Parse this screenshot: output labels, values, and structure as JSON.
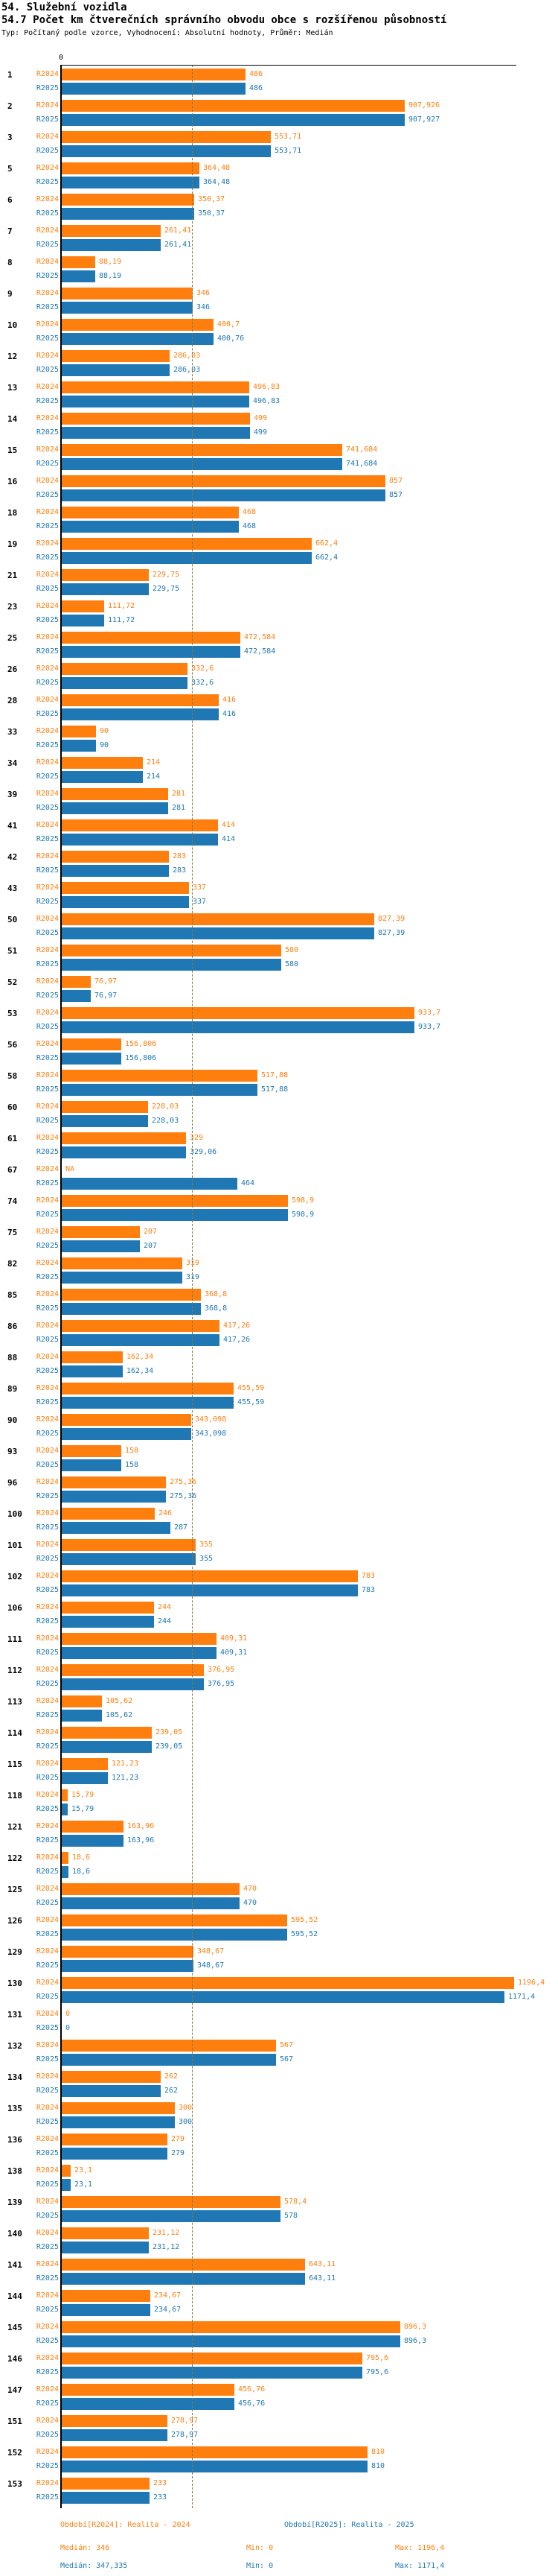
{
  "header": {
    "title": "54. Služební vozidla",
    "subtitle": "54.7 Počet km čtverečních správního obvodu obce s rozšířenou působností",
    "meta": "Typ: Počítaný podle vzorce, Vyhodnocení: Absolutní hodnoty, Průměr: Medián"
  },
  "axis": {
    "zero_label": "0"
  },
  "colors": {
    "r2024": "#FF7F0E",
    "r2025": "#1F77B4",
    "median_line": "#877940",
    "axis": "#000000"
  },
  "footer": {
    "legend_r2024": "Období[R2024]: Realita - 2024",
    "legend_r2025": "Období[R2025]: Realita - 2025",
    "stats_r2024": {
      "median": "Medián: 346",
      "min": "Min: 0",
      "max": "Max: 1196,4"
    },
    "stats_r2025": {
      "median": "Medián: 347,335",
      "min": "Min: 0",
      "max": "Max: 1171,4"
    }
  },
  "chart_data": {
    "type": "bar",
    "orientation": "horizontal",
    "title": "54.7 Počet km čtverečních správního obvodu obce s rozšířenou působností",
    "xlim": [
      0,
      1204
    ],
    "grid": false,
    "reference_line": {
      "label": "Medián",
      "value": 346,
      "style": "dashed"
    },
    "categories": [
      "1",
      "2",
      "3",
      "5",
      "6",
      "7",
      "8",
      "9",
      "10",
      "12",
      "13",
      "14",
      "15",
      "16",
      "18",
      "19",
      "21",
      "23",
      "25",
      "26",
      "28",
      "33",
      "34",
      "39",
      "41",
      "42",
      "43",
      "50",
      "51",
      "52",
      "53",
      "56",
      "58",
      "60",
      "61",
      "67",
      "74",
      "75",
      "82",
      "85",
      "86",
      "88",
      "89",
      "90",
      "93",
      "96",
      "100",
      "101",
      "102",
      "106",
      "111",
      "112",
      "113",
      "114",
      "115",
      "118",
      "121",
      "122",
      "125",
      "126",
      "129",
      "130",
      "131",
      "132",
      "134",
      "135",
      "136",
      "138",
      "139",
      "140",
      "141",
      "144",
      "145",
      "146",
      "147",
      "151",
      "152",
      "153"
    ],
    "series": [
      {
        "name": "R2024",
        "values": [
          486,
          907.926,
          553.71,
          364.48,
          350.37,
          261.41,
          88.19,
          346,
          400.7,
          286.03,
          496.83,
          499,
          741.684,
          857,
          468,
          662.4,
          229.75,
          111.72,
          472.584,
          332.6,
          416,
          90,
          214,
          281,
          414,
          283,
          337,
          827.39,
          580,
          76.97,
          933.7,
          156.806,
          517.88,
          228.03,
          329,
          null,
          598.9,
          207,
          319,
          368.8,
          417.26,
          162.34,
          455.59,
          343.098,
          158,
          275.36,
          246,
          355,
          783,
          244,
          409.31,
          376.95,
          105.62,
          239.05,
          121.23,
          15.79,
          163.96,
          18.6,
          470,
          595.52,
          348.67,
          1196.4,
          0,
          567,
          262,
          300,
          279,
          23.1,
          578.4,
          231.12,
          643.11,
          234.67,
          896.3,
          795.6,
          456.76,
          278.97,
          810,
          233
        ],
        "labels": [
          "486",
          "907,926",
          "553,71",
          "364,48",
          "350,37",
          "261,41",
          "88,19",
          "346",
          "400,7",
          "286,03",
          "496,83",
          "499",
          "741,684",
          "857",
          "468",
          "662,4",
          "229,75",
          "111,72",
          "472,584",
          "332,6",
          "416",
          "90",
          "214",
          "281",
          "414",
          "283",
          "337",
          "827,39",
          "580",
          "76,97",
          "933,7",
          "156,806",
          "517,88",
          "228,03",
          "329",
          "NA",
          "598,9",
          "207",
          "319",
          "368,8",
          "417,26",
          "162,34",
          "455,59",
          "343,098",
          "158",
          "275,36",
          "246",
          "355",
          "783",
          "244",
          "409,31",
          "376,95",
          "105,62",
          "239,05",
          "121,23",
          "15,79",
          "163,96",
          "18,6",
          "470",
          "595,52",
          "348,67",
          "1196,4",
          "0",
          "567",
          "262",
          "300",
          "279",
          "23,1",
          "578,4",
          "231,12",
          "643,11",
          "234,67",
          "896,3",
          "795,6",
          "456,76",
          "278,97",
          "810",
          "233"
        ]
      },
      {
        "name": "R2025",
        "values": [
          486,
          907.927,
          553.71,
          364.48,
          350.37,
          261.41,
          88.19,
          346,
          400.76,
          286.03,
          496.83,
          499,
          741.684,
          857,
          468,
          662.4,
          229.75,
          111.72,
          472.584,
          332.6,
          416,
          90,
          214,
          281,
          414,
          283,
          337,
          827.39,
          580,
          76.97,
          933.7,
          156.806,
          517.88,
          228.03,
          329.06,
          464,
          598.9,
          207,
          319,
          368.8,
          417.26,
          162.34,
          455.59,
          343.098,
          158,
          275.36,
          287,
          355,
          783,
          244,
          409.31,
          376.95,
          105.62,
          239.05,
          121.23,
          15.79,
          163.96,
          18.6,
          470,
          595.52,
          348.67,
          1171.4,
          0,
          567,
          262,
          300,
          279,
          23.1,
          578,
          231.12,
          643.11,
          234.67,
          896.3,
          795.6,
          456.76,
          278.97,
          810,
          233
        ],
        "labels": [
          "486",
          "907,927",
          "553,71",
          "364,48",
          "350,37",
          "261,41",
          "88,19",
          "346",
          "400,76",
          "286,03",
          "496,83",
          "499",
          "741,684",
          "857",
          "468",
          "662,4",
          "229,75",
          "111,72",
          "472,584",
          "332,6",
          "416",
          "90",
          "214",
          "281",
          "414",
          "283",
          "337",
          "827,39",
          "580",
          "76,97",
          "933,7",
          "156,806",
          "517,88",
          "228,03",
          "329,06",
          "464",
          "598,9",
          "207",
          "319",
          "368,8",
          "417,26",
          "162,34",
          "455,59",
          "343,098",
          "158",
          "275,36",
          "287",
          "355",
          "783",
          "244",
          "409,31",
          "376,95",
          "105,62",
          "239,05",
          "121,23",
          "15,79",
          "163,96",
          "18,6",
          "470",
          "595,52",
          "348,67",
          "1171,4",
          "0",
          "567",
          "262",
          "300",
          "279",
          "23,1",
          "578",
          "231,12",
          "643,11",
          "234,67",
          "896,3",
          "795,6",
          "456,76",
          "278,97",
          "810",
          "233"
        ]
      }
    ]
  }
}
